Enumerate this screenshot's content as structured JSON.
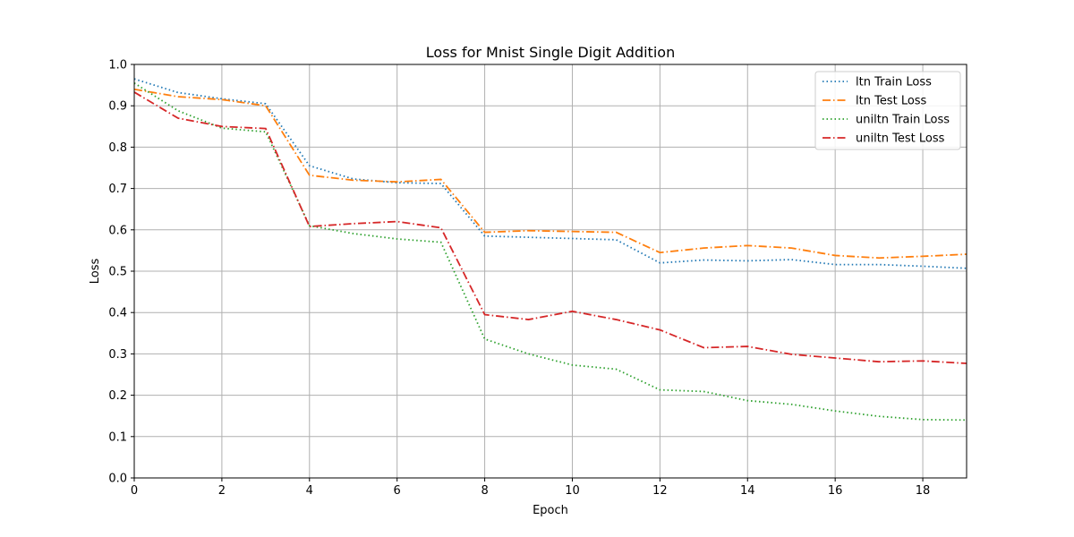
{
  "chart_data": {
    "type": "line",
    "title": "Loss for Mnist Single Digit Addition",
    "xlabel": "Epoch",
    "ylabel": "Loss",
    "xlim": [
      0,
      19
    ],
    "ylim": [
      0.0,
      1.0
    ],
    "xticks": [
      0,
      2,
      4,
      6,
      8,
      10,
      12,
      14,
      16,
      18
    ],
    "yticks": [
      0.0,
      0.1,
      0.2,
      0.3,
      0.4,
      0.5,
      0.6,
      0.7,
      0.8,
      0.9,
      1.0
    ],
    "grid": true,
    "legend_position": "top-right",
    "x": [
      0,
      1,
      2,
      3,
      4,
      5,
      6,
      7,
      8,
      9,
      10,
      11,
      12,
      13,
      14,
      15,
      16,
      17,
      18,
      19
    ],
    "series": [
      {
        "name": "ltn Train Loss",
        "color": "#1f77b4",
        "dash": "dotted",
        "values": [
          0.965,
          0.932,
          0.917,
          0.905,
          0.755,
          0.723,
          0.714,
          0.712,
          0.585,
          0.582,
          0.579,
          0.576,
          0.52,
          0.527,
          0.525,
          0.528,
          0.516,
          0.516,
          0.512,
          0.507
        ]
      },
      {
        "name": "ltn Test Loss",
        "color": "#ff7f0e",
        "dash": "dashdot",
        "values": [
          0.94,
          0.922,
          0.915,
          0.9,
          0.732,
          0.72,
          0.716,
          0.722,
          0.594,
          0.598,
          0.596,
          0.594,
          0.545,
          0.556,
          0.562,
          0.556,
          0.538,
          0.532,
          0.536,
          0.541
        ]
      },
      {
        "name": "uniltn Train Loss",
        "color": "#2ca02c",
        "dash": "dotted",
        "values": [
          0.955,
          0.888,
          0.846,
          0.837,
          0.61,
          0.591,
          0.578,
          0.57,
          0.336,
          0.3,
          0.273,
          0.263,
          0.213,
          0.209,
          0.187,
          0.178,
          0.162,
          0.149,
          0.141,
          0.14
        ]
      },
      {
        "name": "uniltn Test Loss",
        "color": "#d62728",
        "dash": "dashdot",
        "values": [
          0.933,
          0.87,
          0.85,
          0.845,
          0.608,
          0.615,
          0.62,
          0.605,
          0.395,
          0.383,
          0.403,
          0.383,
          0.358,
          0.315,
          0.318,
          0.299,
          0.29,
          0.281,
          0.283,
          0.277
        ]
      }
    ]
  }
}
